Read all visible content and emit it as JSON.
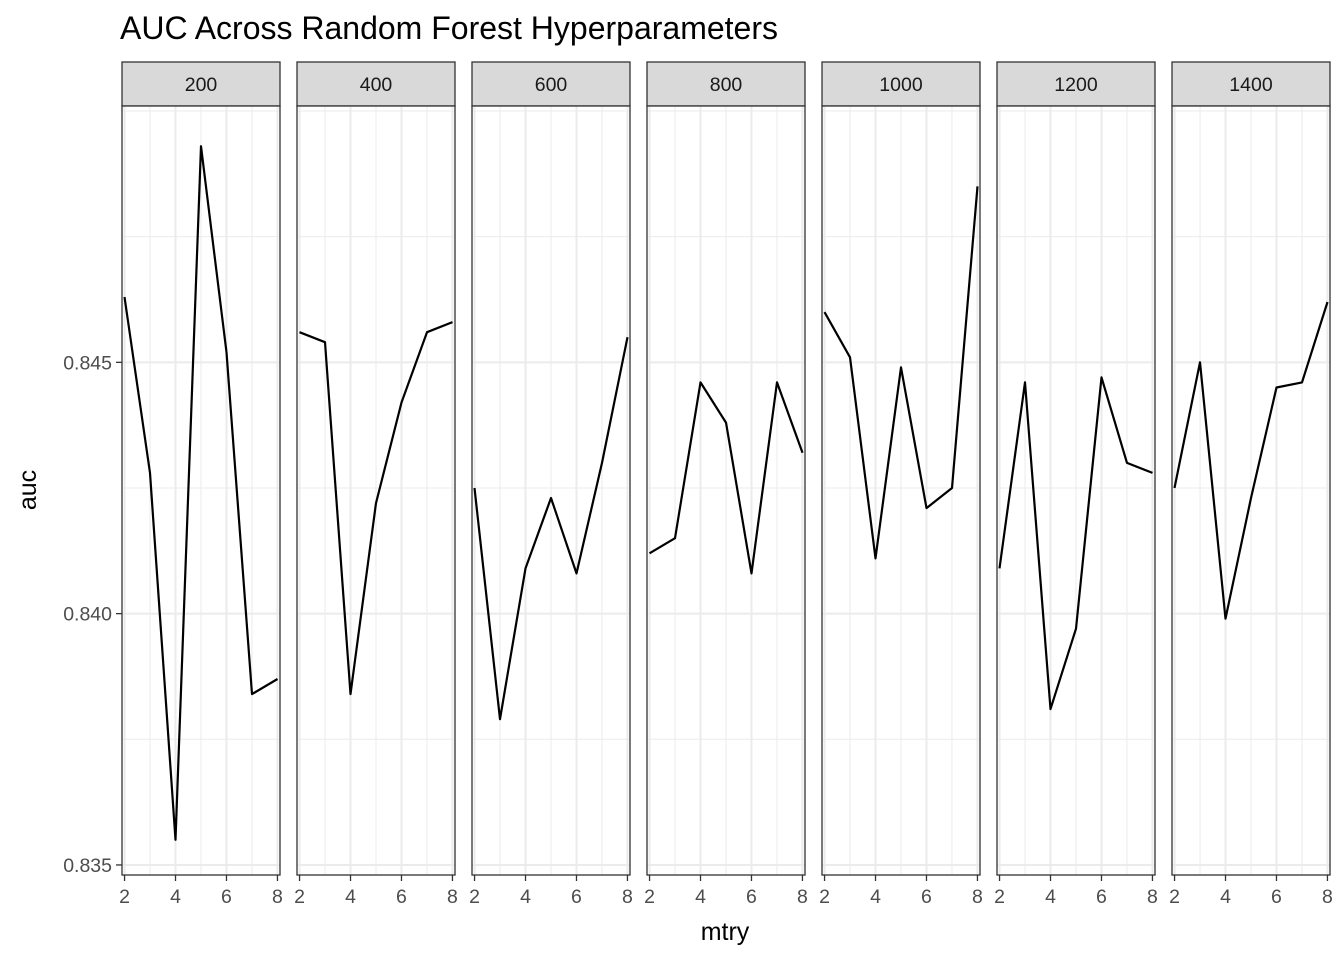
{
  "chart_data": {
    "type": "line",
    "title": "AUC Across Random Forest Hyperparameters",
    "xlabel": "mtry",
    "ylabel": "auc",
    "x": [
      2,
      3,
      4,
      5,
      6,
      7,
      8
    ],
    "x_ticks": [
      2,
      4,
      6,
      8
    ],
    "x_tick_labels": [
      "2",
      "4",
      "6",
      "8"
    ],
    "xlim": [
      1.9,
      8.1
    ],
    "y_ticks": [
      0.835,
      0.84,
      0.845
    ],
    "y_tick_labels": [
      "0.835",
      "0.840",
      "0.845"
    ],
    "ylim": [
      0.8348,
      0.8501
    ],
    "grid": true,
    "line_color": "#000000",
    "facets": [
      {
        "label": "200",
        "values": [
          0.8463,
          0.8428,
          0.8355,
          0.8493,
          0.8452,
          0.8384,
          0.8387
        ]
      },
      {
        "label": "400",
        "values": [
          0.8456,
          0.8454,
          0.8384,
          0.8422,
          0.8442,
          0.8456,
          0.8458
        ]
      },
      {
        "label": "600",
        "values": [
          0.8425,
          0.8379,
          0.8409,
          0.8423,
          0.8408,
          0.843,
          0.8455
        ]
      },
      {
        "label": "800",
        "values": [
          0.8412,
          0.8415,
          0.8446,
          0.8438,
          0.8408,
          0.8446,
          0.8432
        ]
      },
      {
        "label": "1000",
        "values": [
          0.846,
          0.8451,
          0.8411,
          0.8449,
          0.8421,
          0.8425,
          0.8485
        ]
      },
      {
        "label": "1200",
        "values": [
          0.8409,
          0.8446,
          0.8381,
          0.8397,
          0.8447,
          0.843,
          0.8428
        ]
      },
      {
        "label": "1400",
        "values": [
          0.8425,
          0.845,
          0.8399,
          0.8423,
          0.8445,
          0.8446,
          0.8462
        ]
      }
    ]
  }
}
